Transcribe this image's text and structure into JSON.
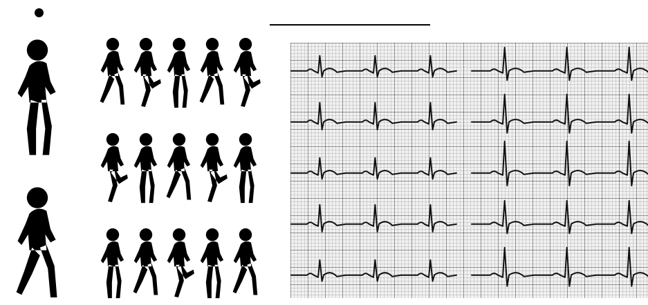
{
  "decor": {
    "bullet": "bullet-dot",
    "rule": "horizontal-line"
  },
  "illustration": {
    "runners_icon": "running-person-silhouettes",
    "large_figures": 2,
    "small_figures_rows": 3,
    "small_figures_per_row": 5,
    "color": "#000000"
  },
  "ecg": {
    "icon": "ecg-strip",
    "rows": 5,
    "columns": 2,
    "paper_color": "#f1f1f1",
    "trace_color": "#111111"
  }
}
